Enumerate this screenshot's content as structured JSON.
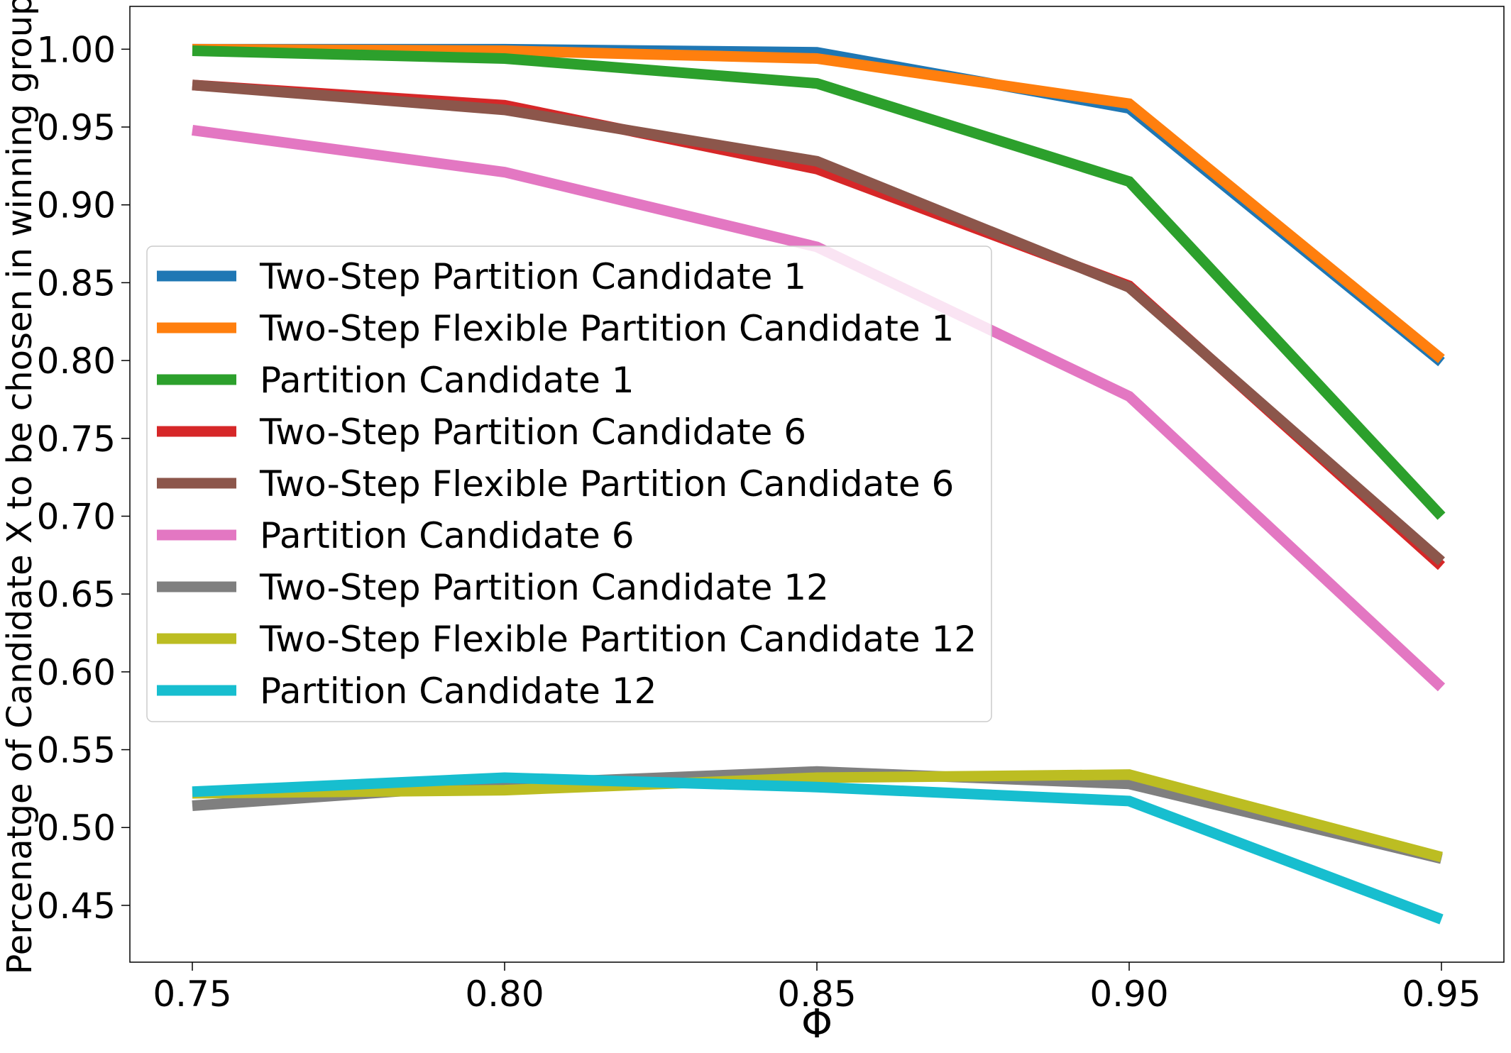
{
  "chart_data": {
    "type": "line",
    "title": "",
    "xlabel": "Φ",
    "ylabel": "Percenatge of Candidate X to be chosen in winning group",
    "x": [
      0.75,
      0.8,
      0.85,
      0.9,
      0.95
    ],
    "xticks": [
      "0.75",
      "0.80",
      "0.85",
      "0.90",
      "0.95"
    ],
    "yticks": [
      "0.45",
      "0.50",
      "0.55",
      "0.60",
      "0.65",
      "0.70",
      "0.75",
      "0.80",
      "0.85",
      "0.90",
      "0.95",
      "1.00"
    ],
    "xlim": [
      0.74,
      0.96
    ],
    "ylim": [
      0.4135,
      1.0275
    ],
    "grid": false,
    "legend_position": "center-left",
    "series": [
      {
        "name": "Two-Step Partition Candidate 1",
        "color": "#1f77b4",
        "values": [
          1.0,
          1.0,
          0.998,
          0.962,
          0.799
        ]
      },
      {
        "name": "Two-Step Flexible Partition Candidate 1",
        "color": "#ff7f0e",
        "values": [
          1.0,
          0.999,
          0.994,
          0.965,
          0.801
        ]
      },
      {
        "name": "Partition Candidate 1",
        "color": "#2ca02c",
        "values": [
          0.999,
          0.994,
          0.978,
          0.915,
          0.7
        ]
      },
      {
        "name": "Two-Step Partition Candidate 6",
        "color": "#d62728",
        "values": [
          0.977,
          0.964,
          0.923,
          0.848,
          0.668
        ]
      },
      {
        "name": "Two-Step Flexible Partition Candidate 6",
        "color": "#8c564b",
        "values": [
          0.977,
          0.961,
          0.928,
          0.847,
          0.671
        ]
      },
      {
        "name": "Partition Candidate 6",
        "color": "#e377c2",
        "values": [
          0.948,
          0.921,
          0.873,
          0.777,
          0.59
        ]
      },
      {
        "name": "Two-Step Partition Candidate 12",
        "color": "#7f7f7f",
        "values": [
          0.514,
          0.528,
          0.536,
          0.528,
          0.48
        ]
      },
      {
        "name": "Two-Step Flexible Partition Candidate 12",
        "color": "#bcbd22",
        "values": [
          0.522,
          0.524,
          0.532,
          0.534,
          0.481
        ]
      },
      {
        "name": "Partition Candidate 12",
        "color": "#17becf",
        "values": [
          0.523,
          0.532,
          0.526,
          0.517,
          0.441
        ]
      }
    ]
  }
}
